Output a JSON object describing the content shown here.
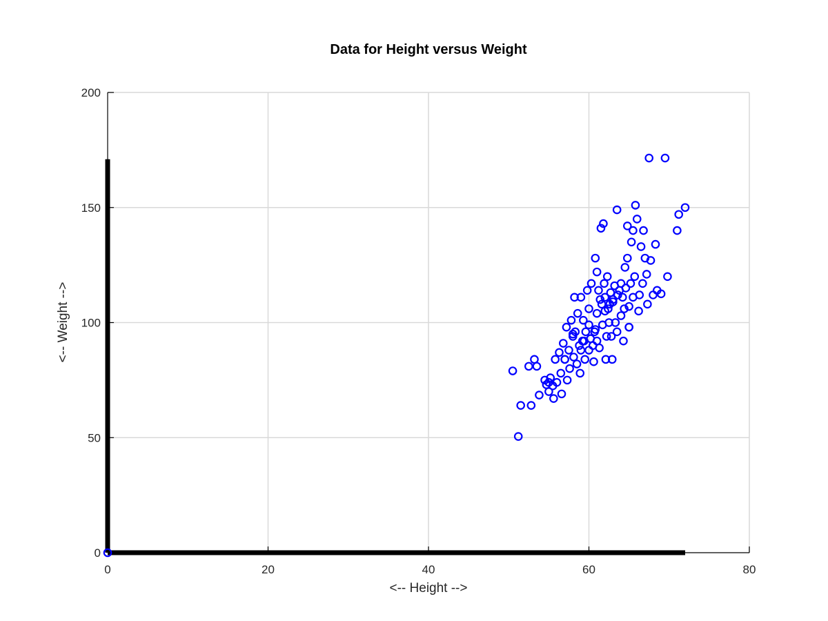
{
  "chart_data": {
    "type": "scatter",
    "title": "Data for Height versus Weight",
    "xlabel": "<-- Height -->",
    "ylabel": "<-- Weight -->",
    "xlim": [
      0,
      80
    ],
    "ylim": [
      0,
      200
    ],
    "xticks": [
      0,
      20,
      40,
      60,
      80
    ],
    "yticks": [
      0,
      50,
      100,
      150,
      200
    ],
    "grid": true,
    "colors": {
      "marker": "#0000ff",
      "grid": "#d9d9d9",
      "axis": "#000000",
      "spine": "#000000"
    },
    "spines": {
      "x": [
        0,
        72
      ],
      "y": [
        0,
        171
      ]
    },
    "series": [
      {
        "marker": "circle-open",
        "points": [
          [
            0,
            0
          ],
          [
            50.5,
            79
          ],
          [
            51.2,
            50.5
          ],
          [
            51.5,
            64
          ],
          [
            52.5,
            81
          ],
          [
            52.8,
            64
          ],
          [
            53.2,
            84
          ],
          [
            53.5,
            81
          ],
          [
            53.8,
            68.5
          ],
          [
            54.5,
            75
          ],
          [
            54.7,
            73
          ],
          [
            55,
            70
          ],
          [
            55.2,
            76
          ],
          [
            55.5,
            72.5
          ],
          [
            55.6,
            67
          ],
          [
            55.8,
            84
          ],
          [
            56,
            74
          ],
          [
            56.3,
            87
          ],
          [
            56.5,
            78
          ],
          [
            56.6,
            69
          ],
          [
            56.8,
            91
          ],
          [
            57,
            84
          ],
          [
            57.2,
            98
          ],
          [
            57.3,
            75
          ],
          [
            57.5,
            88
          ],
          [
            57.6,
            80
          ],
          [
            57.8,
            101
          ],
          [
            58,
            94
          ],
          [
            58.1,
            85
          ],
          [
            58.3,
            96
          ],
          [
            58.5,
            82
          ],
          [
            58.6,
            104
          ],
          [
            58.8,
            90
          ],
          [
            58.2,
            111
          ],
          [
            58.9,
            78
          ],
          [
            59,
            111
          ],
          [
            59.2,
            92
          ],
          [
            59.3,
            101
          ],
          [
            59.5,
            84
          ],
          [
            59.6,
            96
          ],
          [
            59.8,
            114
          ],
          [
            60,
            106
          ],
          [
            60,
            88
          ],
          [
            60.2,
            93
          ],
          [
            60.3,
            117
          ],
          [
            60.5,
            90
          ],
          [
            60.6,
            83
          ],
          [
            60.8,
            97
          ],
          [
            61,
            104
          ],
          [
            60.8,
            128
          ],
          [
            61,
            122
          ],
          [
            61.2,
            114
          ],
          [
            61.3,
            89
          ],
          [
            61.5,
            141
          ],
          [
            61.6,
            108
          ],
          [
            61.7,
            99
          ],
          [
            61.8,
            143
          ],
          [
            61.9,
            117
          ],
          [
            62,
            111
          ],
          [
            62.1,
            84
          ],
          [
            62.2,
            94
          ],
          [
            62.3,
            120
          ],
          [
            62.4,
            106
          ],
          [
            62.5,
            100
          ],
          [
            62.7,
            113
          ],
          [
            62.8,
            94
          ],
          [
            62.9,
            84
          ],
          [
            63,
            109
          ],
          [
            63.2,
            116
          ],
          [
            63.3,
            100
          ],
          [
            63.5,
            149
          ],
          [
            63.5,
            96
          ],
          [
            63.8,
            114
          ],
          [
            64,
            103
          ],
          [
            64.2,
            111
          ],
          [
            64.3,
            92
          ],
          [
            64.5,
            124
          ],
          [
            64.6,
            115
          ],
          [
            64.8,
            128
          ],
          [
            64.8,
            142
          ],
          [
            65,
            107
          ],
          [
            65,
            98
          ],
          [
            65.2,
            117
          ],
          [
            65.3,
            135
          ],
          [
            65.5,
            140
          ],
          [
            65.5,
            111
          ],
          [
            65.7,
            120
          ],
          [
            65.8,
            151
          ],
          [
            66,
            145
          ],
          [
            66.2,
            105
          ],
          [
            66.3,
            112
          ],
          [
            66.5,
            133
          ],
          [
            66.7,
            117
          ],
          [
            66.8,
            140
          ],
          [
            67,
            128
          ],
          [
            67.2,
            121
          ],
          [
            67.3,
            108
          ],
          [
            67.5,
            171.5
          ],
          [
            67.7,
            127
          ],
          [
            68,
            112
          ],
          [
            68.3,
            134
          ],
          [
            68.5,
            114
          ],
          [
            69,
            112.5
          ],
          [
            69.5,
            171.5
          ],
          [
            69.8,
            120
          ],
          [
            71,
            140
          ],
          [
            71.2,
            147
          ],
          [
            72,
            150
          ],
          [
            55,
            74
          ],
          [
            57,
            84
          ],
          [
            58,
            95
          ],
          [
            59,
            88
          ],
          [
            60,
            99
          ],
          [
            61,
            92
          ],
          [
            62,
            105
          ],
          [
            63,
            110
          ],
          [
            64,
            117
          ],
          [
            65,
            98
          ],
          [
            59.4,
            92
          ],
          [
            60.7,
            96
          ],
          [
            61.4,
            110
          ],
          [
            62.6,
            108
          ],
          [
            63.6,
            112
          ],
          [
            64.4,
            106
          ]
        ]
      }
    ]
  }
}
